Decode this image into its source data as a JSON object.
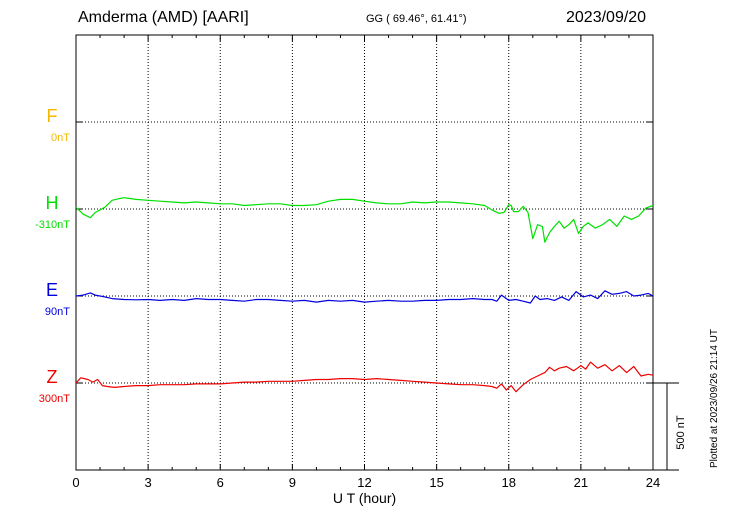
{
  "header": {
    "station": "Amderma (AMD)  [AARI]",
    "coords": "GG ( 69.46°,  61.41°)",
    "date": "2023/09/20"
  },
  "plotted_note": "Plotted at 2023/09/26 21:14 UT",
  "colors": {
    "F": "#f5b800",
    "H": "#00e000",
    "E": "#0000dd",
    "Z": "#ee0000",
    "grid": "#000000"
  },
  "chart_data": {
    "type": "line",
    "xlabel": "U T (hour)",
    "xlim": [
      0,
      24
    ],
    "xticks": [
      "0",
      "3",
      "6",
      "9",
      "12",
      "15",
      "18",
      "21",
      "24"
    ],
    "scale_bar": {
      "label": "500 nT",
      "value_nT": 500
    },
    "channels": [
      {
        "name": "F",
        "offset_label": "0nT",
        "baseline_row": 1
      },
      {
        "name": "H",
        "offset_label": "-310nT",
        "baseline_row": 2
      },
      {
        "name": "E",
        "offset_label": "90nT",
        "baseline_row": 3
      },
      {
        "name": "Z",
        "offset_label": "300nT",
        "baseline_row": 4
      }
    ],
    "series": [
      {
        "name": "H",
        "baseline_row": 2,
        "color": "#00e000",
        "x": [
          0,
          0.3,
          0.6,
          0.8,
          1.2,
          1.5,
          1.8,
          2.0,
          2.5,
          3.0,
          3.5,
          4.0,
          4.5,
          5.0,
          5.5,
          6.0,
          6.5,
          7.0,
          7.5,
          8.0,
          8.5,
          9.0,
          9.5,
          10.0,
          10.5,
          11.0,
          11.5,
          12.0,
          12.5,
          13.0,
          13.5,
          14.0,
          14.5,
          15.0,
          15.5,
          16.0,
          16.5,
          17.0,
          17.3,
          17.6,
          17.8,
          18.0,
          18.1,
          18.2,
          18.4,
          18.6,
          18.8,
          19.0,
          19.2,
          19.4,
          19.5,
          19.7,
          19.9,
          20.1,
          20.3,
          20.5,
          20.7,
          20.9,
          21.1,
          21.3,
          21.6,
          21.9,
          22.2,
          22.5,
          22.8,
          23.1,
          23.4,
          23.7,
          24.0
        ],
        "y": [
          10,
          -30,
          -50,
          -20,
          10,
          50,
          60,
          65,
          55,
          50,
          45,
          40,
          35,
          40,
          35,
          30,
          30,
          20,
          25,
          30,
          30,
          20,
          20,
          25,
          45,
          55,
          55,
          45,
          35,
          30,
          30,
          40,
          35,
          40,
          40,
          35,
          30,
          20,
          -5,
          -25,
          -20,
          25,
          20,
          -15,
          -15,
          15,
          -20,
          -170,
          -90,
          -100,
          -190,
          -135,
          -100,
          -70,
          -110,
          -90,
          -60,
          -140,
          -100,
          -80,
          -110,
          -90,
          -60,
          -100,
          -40,
          -60,
          -40,
          5,
          20
        ]
      },
      {
        "name": "E",
        "baseline_row": 3,
        "color": "#0000dd",
        "x": [
          0,
          0.3,
          0.6,
          0.8,
          1.2,
          1.5,
          2.0,
          2.5,
          3.0,
          3.5,
          4.0,
          4.5,
          5.0,
          5.5,
          6.0,
          6.5,
          7.0,
          7.5,
          8.0,
          8.5,
          9.0,
          9.5,
          10.0,
          10.5,
          11.0,
          11.5,
          12.0,
          12.5,
          13.0,
          13.5,
          14.0,
          14.5,
          15.0,
          15.5,
          16.0,
          16.5,
          17.0,
          17.3,
          17.5,
          17.7,
          18.0,
          18.3,
          18.6,
          18.9,
          19.1,
          19.3,
          19.6,
          19.9,
          20.2,
          20.5,
          20.8,
          21.1,
          21.4,
          21.7,
          22.0,
          22.3,
          22.6,
          22.9,
          23.2,
          23.5,
          23.8,
          24.0
        ],
        "y": [
          0,
          5,
          18,
          5,
          -5,
          -15,
          -20,
          -22,
          -20,
          -25,
          -20,
          -25,
          -15,
          -20,
          -20,
          -25,
          -30,
          -20,
          -20,
          -25,
          -30,
          -25,
          -35,
          -25,
          -30,
          -25,
          -35,
          -30,
          -25,
          -30,
          -30,
          -25,
          -25,
          -20,
          -20,
          -15,
          -20,
          -20,
          -30,
          5,
          -25,
          -20,
          -30,
          -40,
          0,
          -20,
          -15,
          -25,
          -5,
          -25,
          25,
          -5,
          5,
          -15,
          30,
          10,
          15,
          25,
          0,
          5,
          15,
          0
        ]
      },
      {
        "name": "Z",
        "baseline_row": 4,
        "color": "#ee0000",
        "x": [
          0,
          0.2,
          0.5,
          0.7,
          0.9,
          1.1,
          1.3,
          1.6,
          2.0,
          2.5,
          3.0,
          3.5,
          4.0,
          4.5,
          5.0,
          5.5,
          6.0,
          6.5,
          7.0,
          7.5,
          8.0,
          8.5,
          9.0,
          9.5,
          10.0,
          10.5,
          11.0,
          11.5,
          12.0,
          12.5,
          13.0,
          13.5,
          14.0,
          14.5,
          15.0,
          15.5,
          16.0,
          16.5,
          17.0,
          17.3,
          17.5,
          17.7,
          17.9,
          18.1,
          18.3,
          18.6,
          18.9,
          19.2,
          19.5,
          19.7,
          19.9,
          20.1,
          20.4,
          20.7,
          21.0,
          21.2,
          21.4,
          21.7,
          22.0,
          22.3,
          22.6,
          22.9,
          23.2,
          23.5,
          23.8,
          24.0
        ],
        "y": [
          0,
          30,
          20,
          5,
          20,
          -15,
          -20,
          -25,
          -20,
          -15,
          -15,
          -10,
          -10,
          -10,
          -5,
          -5,
          -5,
          0,
          5,
          5,
          10,
          10,
          10,
          15,
          20,
          20,
          25,
          25,
          20,
          25,
          20,
          15,
          10,
          5,
          0,
          -5,
          -10,
          -10,
          -15,
          -20,
          -30,
          -5,
          -40,
          -15,
          -50,
          -10,
          20,
          40,
          60,
          90,
          70,
          85,
          95,
          70,
          100,
          80,
          120,
          85,
          105,
          70,
          100,
          60,
          95,
          40,
          50,
          45
        ]
      }
    ]
  }
}
